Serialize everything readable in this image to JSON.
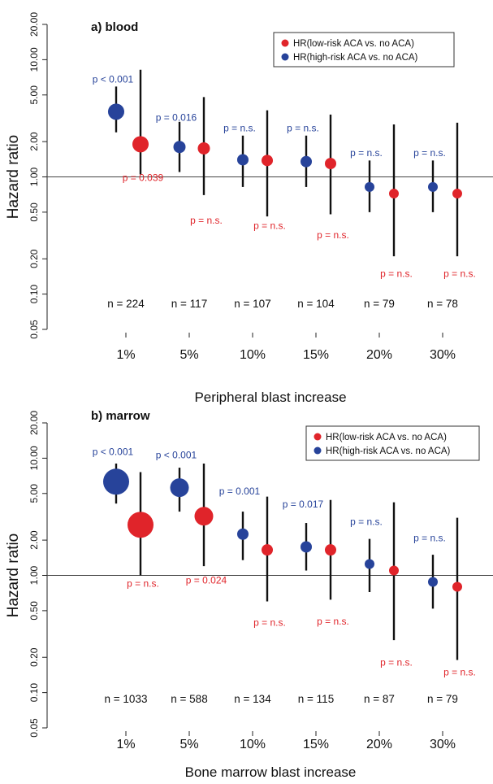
{
  "colors": {
    "low": "#e0242a",
    "high": "#27439a",
    "axis": "#222222",
    "text": "#111111"
  },
  "chart_data": [
    {
      "type": "scatter",
      "panel_title": "a) blood",
      "xlabel": "Peripheral blast increase",
      "ylabel": "Hazard ratio",
      "yscale": "log",
      "ylim": [
        0.05,
        20
      ],
      "yticks": [
        "0.05",
        "0.10",
        "0.20",
        "0.50",
        "1.00",
        "2.00",
        "5.00",
        "10.00",
        "20.00"
      ],
      "reference_line": 1.0,
      "categories": [
        "1%",
        "5%",
        "10%",
        "15%",
        "20%",
        "30%"
      ],
      "n_labels": [
        "n = 224",
        "n = 117",
        "n = 107",
        "n = 104",
        "n = 79",
        "n = 78"
      ],
      "legend": [
        "HR(low-risk ACA vs. no ACA)",
        "HR(high-risk ACA vs. no ACA)"
      ],
      "legend_position": "top-right",
      "series": [
        {
          "name": "HR(high-risk ACA vs. no ACA)",
          "color_key": "high",
          "hr": [
            3.6,
            1.8,
            1.4,
            1.35,
            0.82,
            0.82
          ],
          "ci_low": [
            2.4,
            1.1,
            0.82,
            0.82,
            0.5,
            0.5
          ],
          "ci_high": [
            5.9,
            2.95,
            2.25,
            2.25,
            1.38,
            1.38
          ],
          "bubble_size": [
            1.0,
            0.75,
            0.7,
            0.7,
            0.6,
            0.6
          ],
          "p_labels": [
            "p < 0.001",
            "p = 0.016",
            "p = n.s.",
            "p = n.s.",
            "p = n.s.",
            "p = n.s."
          ],
          "p_label_at": [
            6.4,
            3.0,
            2.45,
            2.45,
            1.5,
            1.5
          ]
        },
        {
          "name": "HR(low-risk ACA vs. no ACA)",
          "color_key": "low",
          "hr": [
            1.9,
            1.75,
            1.38,
            1.3,
            0.72,
            0.72
          ],
          "ci_low": [
            1.05,
            0.7,
            0.46,
            0.48,
            0.21,
            0.21
          ],
          "ci_high": [
            8.2,
            4.8,
            3.7,
            3.4,
            2.8,
            2.9
          ],
          "bubble_size": [
            1.0,
            0.75,
            0.7,
            0.7,
            0.6,
            0.6
          ],
          "p_labels": [
            "p = 0.039",
            "p = n.s.",
            "p = n.s.",
            "p = n.s.",
            "p = n.s.",
            "p = n.s."
          ],
          "p_label_at": [
            0.92,
            0.4,
            0.36,
            0.3,
            0.14,
            0.14
          ]
        }
      ]
    },
    {
      "type": "scatter",
      "panel_title": "b) marrow",
      "xlabel": "Bone marrow blast increase",
      "ylabel": "Hazard ratio",
      "yscale": "log",
      "ylim": [
        0.05,
        20
      ],
      "yticks": [
        "0.05",
        "0.10",
        "0.20",
        "0.50",
        "1.00",
        "2.00",
        "5.00",
        "10.00",
        "20.00"
      ],
      "reference_line": 1.0,
      "categories": [
        "1%",
        "5%",
        "10%",
        "15%",
        "20%",
        "30%"
      ],
      "n_labels": [
        "n = 1033",
        "n = 588",
        "n = 134",
        "n = 115",
        "n = 87",
        "n = 79"
      ],
      "legend": [
        "HR(low-risk ACA vs. no ACA)",
        "HR(high-risk ACA vs. no ACA)"
      ],
      "legend_position": "top-right",
      "series": [
        {
          "name": "HR(high-risk ACA vs. no ACA)",
          "color_key": "high",
          "hr": [
            6.3,
            5.6,
            2.25,
            1.75,
            1.25,
            0.88
          ],
          "ci_low": [
            4.1,
            3.5,
            1.35,
            1.1,
            0.72,
            0.52
          ],
          "ci_high": [
            9.0,
            8.3,
            3.5,
            2.8,
            2.05,
            1.5
          ],
          "bubble_size": [
            1.6,
            1.15,
            0.7,
            0.7,
            0.6,
            0.6
          ],
          "p_labels": [
            "p < 0.001",
            "p < 0.001",
            "p = 0.001",
            "p = 0.017",
            "p = n.s.",
            "p = n.s."
          ],
          "p_label_at": [
            10.6,
            10.0,
            4.9,
            3.8,
            2.7,
            1.95
          ]
        },
        {
          "name": "HR(low-risk ACA vs. no ACA)",
          "color_key": "low",
          "hr": [
            2.7,
            3.2,
            1.65,
            1.65,
            1.1,
            0.8
          ],
          "ci_low": [
            1.0,
            1.2,
            0.6,
            0.62,
            0.28,
            0.19
          ],
          "ci_high": [
            7.6,
            9.0,
            4.7,
            4.4,
            4.2,
            3.1
          ],
          "bubble_size": [
            1.6,
            1.15,
            0.7,
            0.7,
            0.6,
            0.6
          ],
          "p_labels": [
            "p = n.s.",
            "p = 0.024",
            "p = n.s.",
            "p = n.s.",
            "p = n.s.",
            "p = n.s."
          ],
          "p_label_at": [
            0.8,
            0.85,
            0.37,
            0.38,
            0.17,
            0.14
          ]
        }
      ]
    }
  ]
}
